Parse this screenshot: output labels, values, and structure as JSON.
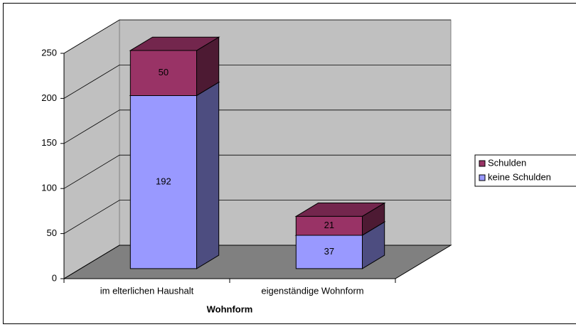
{
  "chart_data": {
    "type": "bar3d_stacked",
    "x_label": "Wohnform",
    "categories": [
      "im elterlichen Haushalt",
      "eigenständige Wohnform"
    ],
    "series": [
      {
        "name": "keine Schulden",
        "color": "#9999ff",
        "values": [
          192,
          37
        ]
      },
      {
        "name": "Schulden",
        "color": "#993366",
        "values": [
          50,
          21
        ]
      }
    ],
    "ylim": [
      0,
      250
    ],
    "yticks": [
      0,
      50,
      100,
      150,
      200,
      250
    ],
    "grid": true,
    "legend": "right"
  }
}
